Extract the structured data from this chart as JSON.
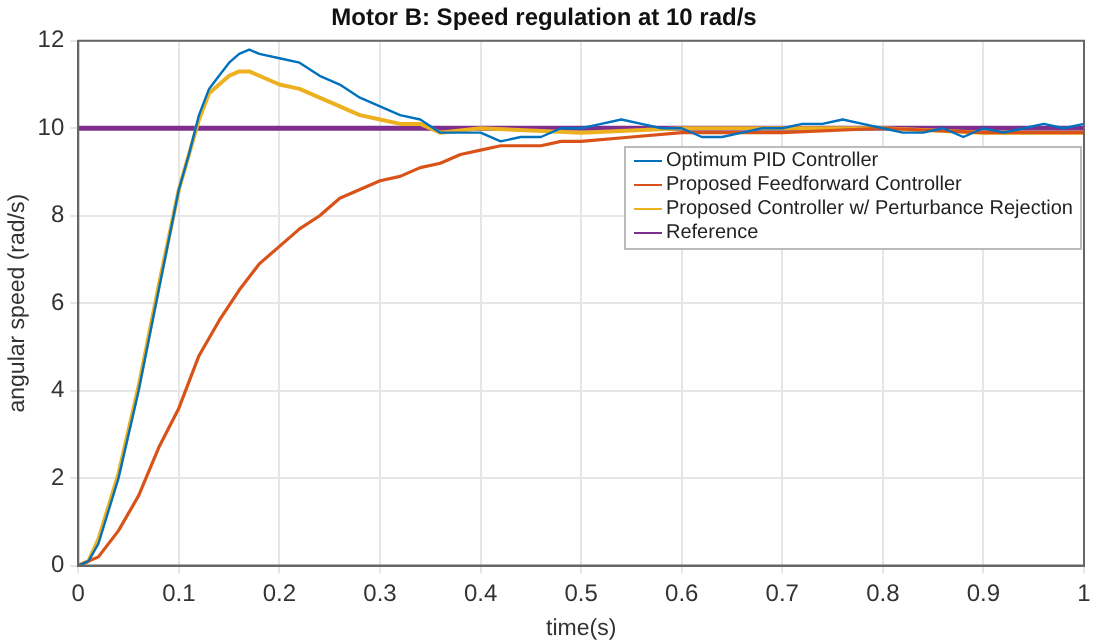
{
  "chart_data": {
    "type": "line",
    "title": "Motor B: Speed regulation at 10 rad/s",
    "xlabel": "time(s)",
    "ylabel": "angular speed (rad/s)",
    "xlim": [
      0,
      1
    ],
    "xticks": [
      0,
      0.1,
      0.2,
      0.3,
      0.4,
      0.5,
      0.6,
      0.7,
      0.8,
      0.9,
      1
    ],
    "ylim": [
      0,
      12
    ],
    "yticks": [
      0,
      2,
      4,
      6,
      8,
      10,
      12
    ],
    "grid": true,
    "legend": "right",
    "marker": "none",
    "line_style": "solid",
    "series": [
      {
        "name": "Optimum PID Controller",
        "color": "#0072bd",
        "x": [
          0,
          0.01,
          0.02,
          0.04,
          0.06,
          0.08,
          0.1,
          0.11,
          0.12,
          0.13,
          0.14,
          0.15,
          0.16,
          0.17,
          0.18,
          0.2,
          0.22,
          0.24,
          0.26,
          0.28,
          0.3,
          0.32,
          0.34,
          0.36,
          0.38,
          0.4,
          0.42,
          0.44,
          0.46,
          0.48,
          0.5,
          0.52,
          0.54,
          0.56,
          0.58,
          0.6,
          0.62,
          0.64,
          0.66,
          0.68,
          0.7,
          0.72,
          0.74,
          0.76,
          0.78,
          0.8,
          0.82,
          0.84,
          0.86,
          0.88,
          0.9,
          0.92,
          0.94,
          0.96,
          0.98,
          1
        ],
        "values": [
          0,
          0.1,
          0.5,
          2,
          4,
          6.3,
          8.6,
          9.4,
          10.3,
          10.9,
          11.2,
          11.5,
          11.7,
          11.8,
          11.7,
          11.6,
          11.5,
          11.2,
          11,
          10.7,
          10.5,
          10.3,
          10.2,
          9.9,
          9.9,
          9.9,
          9.7,
          9.8,
          9.8,
          10,
          10,
          10.1,
          10.2,
          10.1,
          10,
          10,
          9.8,
          9.8,
          9.9,
          10,
          10,
          10.1,
          10.1,
          10.2,
          10.1,
          10,
          9.9,
          9.9,
          10,
          9.8,
          10,
          9.9,
          10,
          10.1,
          10,
          10.1
        ]
      },
      {
        "name": "Proposed Feedforward Controller",
        "color": "#d95319",
        "x": [
          0,
          0.02,
          0.04,
          0.06,
          0.08,
          0.1,
          0.12,
          0.14,
          0.16,
          0.18,
          0.2,
          0.22,
          0.24,
          0.26,
          0.28,
          0.3,
          0.32,
          0.34,
          0.36,
          0.38,
          0.4,
          0.42,
          0.44,
          0.46,
          0.48,
          0.5,
          0.55,
          0.6,
          0.65,
          0.7,
          0.8,
          0.9,
          1
        ],
        "values": [
          0,
          0.2,
          0.8,
          1.6,
          2.7,
          3.6,
          4.8,
          5.6,
          6.3,
          6.9,
          7.3,
          7.7,
          8,
          8.4,
          8.6,
          8.8,
          8.9,
          9.1,
          9.2,
          9.4,
          9.5,
          9.6,
          9.6,
          9.6,
          9.7,
          9.7,
          9.8,
          9.9,
          9.9,
          9.9,
          10,
          9.9,
          9.9
        ]
      },
      {
        "name": "Proposed Controller w/ Perturbance Rejection",
        "color": "#edb120",
        "x": [
          0,
          0.01,
          0.02,
          0.04,
          0.06,
          0.08,
          0.1,
          0.11,
          0.12,
          0.13,
          0.14,
          0.15,
          0.16,
          0.17,
          0.18,
          0.2,
          0.22,
          0.24,
          0.26,
          0.28,
          0.3,
          0.32,
          0.34,
          0.36,
          0.4,
          0.5,
          0.6,
          0.7,
          0.8,
          0.9,
          1
        ],
        "values": [
          0,
          0.1,
          0.6,
          2.1,
          4.1,
          6.4,
          8.6,
          9.4,
          10.2,
          10.8,
          11,
          11.2,
          11.3,
          11.3,
          11.2,
          11,
          10.9,
          10.7,
          10.5,
          10.3,
          10.2,
          10.1,
          10.1,
          9.9,
          10,
          9.9,
          10,
          10,
          10,
          9.9,
          9.9
        ]
      },
      {
        "name": "Reference",
        "color": "#7e2f8e",
        "x": [
          0,
          1
        ],
        "values": [
          10,
          10
        ]
      }
    ]
  }
}
